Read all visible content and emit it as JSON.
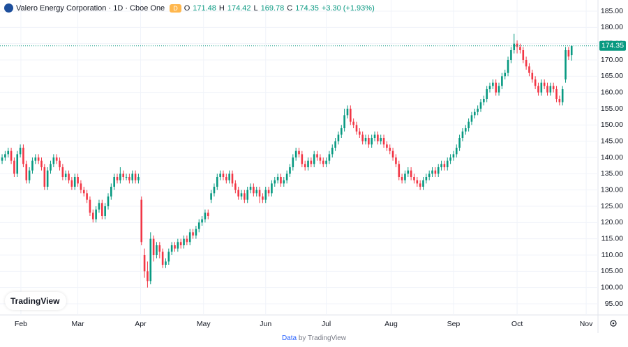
{
  "header": {
    "title": "Valero Energy Corporation · 1D · Cboe One",
    "badge": "D",
    "o": "O",
    "h": "H",
    "l": "L",
    "c": "C",
    "change": "+3.30 (+1.93%)"
  },
  "logo": "TradingView",
  "footer": {
    "data": "Data",
    "by": "by TradingView"
  },
  "chart_data": {
    "type": "candlestick",
    "up_color": "#089981",
    "down_color": "#f23645",
    "grid": true,
    "ylim": [
      91.57,
      188.43
    ],
    "yticks": [
      {
        "value": 95,
        "label": "95.00"
      },
      {
        "value": 100,
        "label": "100.00"
      },
      {
        "value": 105,
        "label": "105.00"
      },
      {
        "value": 110,
        "label": "110.00"
      },
      {
        "value": 115,
        "label": "115.00"
      },
      {
        "value": 120,
        "label": "120.00"
      },
      {
        "value": 125,
        "label": "125.00"
      },
      {
        "value": 130,
        "label": "130.00"
      },
      {
        "value": 135,
        "label": "135.00"
      },
      {
        "value": 140,
        "label": "140.00"
      },
      {
        "value": 145,
        "label": "145.00"
      },
      {
        "value": 150,
        "label": "150.00"
      },
      {
        "value": 155,
        "label": "155.00"
      },
      {
        "value": 160,
        "label": "160.00"
      },
      {
        "value": 165,
        "label": "165.00"
      },
      {
        "value": 170,
        "label": "170.00"
      },
      {
        "value": 175,
        "label": "175.00"
      },
      {
        "value": 180,
        "label": "180.00"
      },
      {
        "value": 185,
        "label": "185.00"
      }
    ],
    "xlim": [
      -0.7,
      196.7
    ],
    "xticks": [
      {
        "value": 6.2,
        "label": "Feb"
      },
      {
        "value": 25,
        "label": "Mar"
      },
      {
        "value": 45.7,
        "label": "Apr"
      },
      {
        "value": 66.5,
        "label": "May"
      },
      {
        "value": 87,
        "label": "Jun"
      },
      {
        "value": 107,
        "label": "Jul"
      },
      {
        "value": 128.4,
        "label": "Aug"
      },
      {
        "value": 149,
        "label": "Sep"
      },
      {
        "value": 170,
        "label": "Oct"
      },
      {
        "value": 192.8,
        "label": "Nov"
      }
    ],
    "candles": [
      [
        139,
        141,
        138,
        140
      ],
      [
        140,
        142,
        139,
        141
      ],
      [
        141,
        143,
        140,
        142
      ],
      [
        142,
        143,
        138,
        139
      ],
      [
        139,
        140,
        134,
        135
      ],
      [
        135,
        142,
        134,
        141
      ],
      [
        141,
        144,
        140,
        143
      ],
      [
        143,
        144,
        137,
        138
      ],
      [
        138,
        139,
        132,
        133
      ],
      [
        133,
        137,
        132,
        136
      ],
      [
        136,
        140,
        135,
        139
      ],
      [
        139,
        141,
        138,
        140
      ],
      [
        140,
        141,
        138,
        139
      ],
      [
        139,
        140,
        136,
        137
      ],
      [
        137,
        138,
        130,
        131
      ],
      [
        131,
        137,
        130,
        136
      ],
      [
        136,
        139,
        135,
        138
      ],
      [
        138,
        141,
        137,
        140
      ],
      [
        140,
        141,
        138,
        139
      ],
      [
        139,
        140,
        136,
        137
      ],
      [
        137,
        138,
        133,
        134
      ],
      [
        134,
        136,
        133,
        135
      ],
      [
        135,
        136,
        132,
        133
      ],
      [
        133,
        134,
        130,
        131
      ],
      [
        131,
        135,
        130,
        134
      ],
      [
        134,
        135,
        131,
        132
      ],
      [
        132,
        133,
        129,
        130
      ],
      [
        130,
        131,
        128,
        129
      ],
      [
        129,
        130,
        126,
        127
      ],
      [
        127,
        128,
        122,
        123
      ],
      [
        123,
        124,
        120,
        121
      ],
      [
        121,
        125,
        120,
        124
      ],
      [
        124,
        127,
        123,
        126
      ],
      [
        126,
        127,
        121,
        122
      ],
      [
        122,
        126,
        121,
        125
      ],
      [
        125,
        129,
        124,
        128
      ],
      [
        128,
        132,
        127,
        131
      ],
      [
        131,
        135,
        130,
        134
      ],
      [
        134,
        135,
        132,
        133
      ],
      [
        133,
        137,
        132,
        135
      ],
      [
        135,
        136,
        133,
        134
      ],
      [
        134,
        135,
        133,
        134
      ],
      [
        134,
        135,
        132,
        133
      ],
      [
        133,
        136,
        132,
        135
      ],
      [
        135,
        136,
        132,
        133
      ],
      [
        133,
        135,
        132,
        134
      ],
      [
        127,
        128,
        113,
        114
      ],
      [
        110,
        112,
        103,
        105
      ],
      [
        105,
        108,
        100,
        102
      ],
      [
        102,
        117,
        101,
        115
      ],
      [
        115,
        116,
        108,
        110
      ],
      [
        110,
        114,
        109,
        113
      ],
      [
        113,
        114,
        109,
        111
      ],
      [
        111,
        112,
        106,
        107
      ],
      [
        107,
        109,
        106,
        108
      ],
      [
        108,
        112,
        107,
        111
      ],
      [
        111,
        114,
        110,
        113
      ],
      [
        113,
        114,
        111,
        112
      ],
      [
        112,
        115,
        111,
        114
      ],
      [
        114,
        115,
        112,
        113
      ],
      [
        113,
        116,
        112,
        115
      ],
      [
        115,
        116,
        113,
        114
      ],
      [
        114,
        118,
        113,
        117
      ],
      [
        117,
        118,
        115,
        116
      ],
      [
        116,
        119,
        115,
        118
      ],
      [
        118,
        121,
        117,
        120
      ],
      [
        120,
        122,
        119,
        121
      ],
      [
        121,
        124,
        120,
        123
      ],
      [
        123,
        124,
        121,
        122
      ],
      [
        127,
        130,
        126,
        129
      ],
      [
        129,
        132,
        128,
        131
      ],
      [
        131,
        135,
        130,
        134
      ],
      [
        134,
        136,
        133,
        135
      ],
      [
        135,
        136,
        133,
        134
      ],
      [
        134,
        135,
        132,
        133
      ],
      [
        133,
        136,
        132,
        135
      ],
      [
        135,
        136,
        131,
        132
      ],
      [
        132,
        133,
        129,
        130
      ],
      [
        130,
        131,
        127,
        128
      ],
      [
        128,
        130,
        127,
        129
      ],
      [
        129,
        130,
        126,
        127
      ],
      [
        127,
        131,
        126,
        130
      ],
      [
        130,
        132,
        129,
        131
      ],
      [
        131,
        132,
        128,
        129
      ],
      [
        129,
        131,
        128,
        130
      ],
      [
        130,
        131,
        126,
        128
      ],
      [
        128,
        129,
        126,
        127
      ],
      [
        127,
        131,
        126,
        130
      ],
      [
        130,
        131,
        128,
        129
      ],
      [
        129,
        133,
        128,
        132
      ],
      [
        132,
        134,
        131,
        133
      ],
      [
        133,
        135,
        132,
        134
      ],
      [
        134,
        135,
        131,
        132
      ],
      [
        132,
        134,
        131,
        133
      ],
      [
        133,
        136,
        132,
        135
      ],
      [
        135,
        138,
        134,
        137
      ],
      [
        137,
        141,
        136,
        140
      ],
      [
        140,
        143,
        139,
        142
      ],
      [
        142,
        143,
        140,
        141
      ],
      [
        141,
        142,
        137,
        138
      ],
      [
        138,
        139,
        136,
        137
      ],
      [
        137,
        140,
        136,
        139
      ],
      [
        139,
        140,
        137,
        138
      ],
      [
        138,
        142,
        137,
        141
      ],
      [
        141,
        142,
        139,
        140
      ],
      [
        140,
        141,
        138,
        139
      ],
      [
        139,
        140,
        137,
        138
      ],
      [
        138,
        140,
        137,
        139
      ],
      [
        139,
        142,
        138,
        141
      ],
      [
        141,
        144,
        140,
        143
      ],
      [
        143,
        146,
        142,
        145
      ],
      [
        145,
        148,
        144,
        147
      ],
      [
        147,
        150,
        146,
        149
      ],
      [
        149,
        155,
        148,
        153
      ],
      [
        153,
        156,
        152,
        155
      ],
      [
        155,
        156,
        150,
        151
      ],
      [
        151,
        152,
        149,
        150
      ],
      [
        150,
        151,
        147,
        148
      ],
      [
        148,
        149,
        146,
        147
      ],
      [
        147,
        148,
        144,
        145
      ],
      [
        145,
        147,
        144,
        146
      ],
      [
        146,
        147,
        143,
        144
      ],
      [
        144,
        147,
        143,
        146
      ],
      [
        146,
        148,
        145,
        147
      ],
      [
        147,
        148,
        144,
        145
      ],
      [
        145,
        147,
        144,
        146
      ],
      [
        146,
        147,
        143,
        144
      ],
      [
        144,
        145,
        142,
        143
      ],
      [
        143,
        144,
        141,
        142
      ],
      [
        142,
        143,
        139,
        140
      ],
      [
        140,
        141,
        137,
        138
      ],
      [
        138,
        139,
        133,
        134
      ],
      [
        134,
        135,
        132,
        133
      ],
      [
        133,
        136,
        132,
        135
      ],
      [
        135,
        137,
        134,
        136
      ],
      [
        136,
        137,
        133,
        134
      ],
      [
        134,
        135,
        132,
        133
      ],
      [
        133,
        134,
        131,
        132
      ],
      [
        132,
        133,
        130,
        131
      ],
      [
        131,
        134,
        130,
        133
      ],
      [
        133,
        135,
        132,
        134
      ],
      [
        134,
        136,
        133,
        135
      ],
      [
        135,
        137,
        134,
        136
      ],
      [
        136,
        137,
        134,
        135
      ],
      [
        135,
        138,
        134,
        137
      ],
      [
        137,
        139,
        136,
        138
      ],
      [
        138,
        139,
        136,
        137
      ],
      [
        137,
        140,
        136,
        139
      ],
      [
        139,
        141,
        138,
        140
      ],
      [
        140,
        142,
        139,
        141
      ],
      [
        141,
        144,
        140,
        143
      ],
      [
        143,
        147,
        142,
        146
      ],
      [
        146,
        149,
        145,
        148
      ],
      [
        148,
        150,
        147,
        149
      ],
      [
        149,
        152,
        148,
        151
      ],
      [
        151,
        154,
        150,
        153
      ],
      [
        153,
        155,
        152,
        154
      ],
      [
        154,
        156,
        153,
        155
      ],
      [
        155,
        158,
        154,
        157
      ],
      [
        157,
        159,
        156,
        158
      ],
      [
        158,
        162,
        157,
        161
      ],
      [
        161,
        163,
        160,
        162
      ],
      [
        162,
        164,
        161,
        163
      ],
      [
        163,
        164,
        159,
        160
      ],
      [
        160,
        163,
        159,
        162
      ],
      [
        162,
        166,
        161,
        165
      ],
      [
        165,
        167,
        164,
        166
      ],
      [
        166,
        171,
        165,
        170
      ],
      [
        170,
        174,
        169,
        173
      ],
      [
        173,
        178,
        172,
        175
      ],
      [
        175,
        176,
        172,
        174
      ],
      [
        174,
        175,
        172,
        173
      ],
      [
        173,
        174,
        169,
        170
      ],
      [
        170,
        171,
        167,
        168
      ],
      [
        168,
        169,
        165,
        166
      ],
      [
        166,
        167,
        163,
        164
      ],
      [
        164,
        165,
        161,
        162
      ],
      [
        162,
        163,
        159,
        160
      ],
      [
        160,
        164,
        159,
        163
      ],
      [
        163,
        164,
        161,
        162
      ],
      [
        162,
        163,
        159,
        160
      ],
      [
        160,
        163,
        159,
        162
      ],
      [
        162,
        163,
        160,
        161
      ],
      [
        161,
        162,
        157,
        158
      ],
      [
        158,
        159,
        156,
        157
      ],
      [
        157,
        162,
        156,
        161
      ],
      [
        164,
        174,
        163,
        173
      ],
      [
        173,
        174,
        170,
        171.05
      ],
      [
        171.48,
        174.42,
        169.78,
        174.35
      ]
    ]
  }
}
